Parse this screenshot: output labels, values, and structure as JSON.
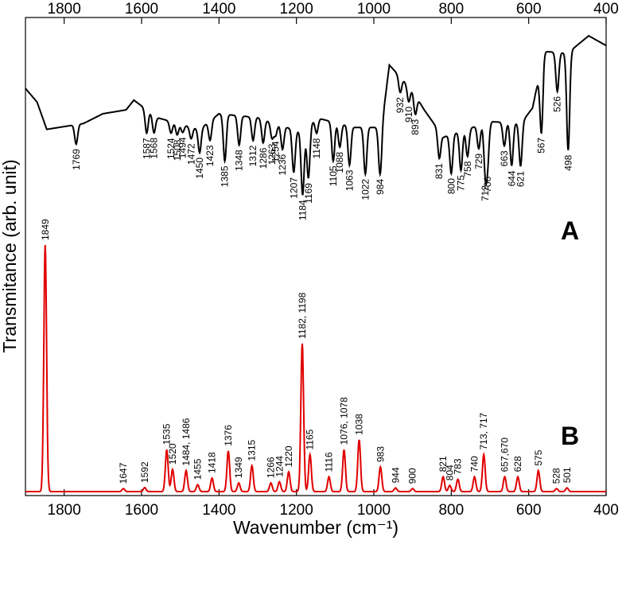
{
  "chart_data": {
    "type": "line",
    "xlabel": "Wavenumber (cm⁻¹)",
    "ylabel": "Transmitance (arb. unit)",
    "xlim": [
      1900,
      400
    ],
    "x_reversed": true,
    "x_ticks_bottom": [
      "1800",
      "1600",
      "1400",
      "1200",
      "1000",
      "800",
      "600",
      "400"
    ],
    "x_ticks_top": [
      "1800",
      "1600",
      "1400",
      "1200",
      "1000",
      "800",
      "600",
      "400"
    ],
    "y_ticks_shown": false,
    "grid": false,
    "series": [
      {
        "name": "A",
        "color": "#000000",
        "relative_transmittance_scale": "0 = lowest trace point, 1 = top of panel",
        "baseline_points": [
          [
            1900,
            0.73
          ],
          [
            1870,
            0.66
          ],
          [
            1845,
            0.52
          ],
          [
            1750,
            0.55
          ],
          [
            1700,
            0.6
          ],
          [
            1640,
            0.62
          ],
          [
            1620,
            0.67
          ],
          [
            1560,
            0.58
          ],
          [
            1450,
            0.52
          ],
          [
            1400,
            0.6
          ],
          [
            1300,
            0.58
          ],
          [
            1180,
            0.5
          ],
          [
            1150,
            0.58
          ],
          [
            1050,
            0.53
          ],
          [
            980,
            0.53
          ],
          [
            960,
            0.85
          ],
          [
            900,
            0.72
          ],
          [
            870,
            0.62
          ],
          [
            820,
            0.48
          ],
          [
            700,
            0.56
          ],
          [
            620,
            0.55
          ],
          [
            590,
            0.63
          ],
          [
            560,
            0.92
          ],
          [
            500,
            0.91
          ],
          [
            445,
            1.0
          ],
          [
            400,
            0.95
          ]
        ],
        "bands": [
          {
            "label": "1769",
            "x": 1769,
            "depth": 0.1
          },
          {
            "label": "1587",
            "x": 1587,
            "depth": 0.12
          },
          {
            "label": "1568",
            "x": 1568,
            "depth": 0.09
          },
          {
            "label": "1524",
            "x": 1524,
            "depth": 0.06
          },
          {
            "label": "1508",
            "x": 1508,
            "depth": 0.06
          },
          {
            "label": "1494",
            "x": 1494,
            "depth": 0.04
          },
          {
            "label": "1472",
            "x": 1472,
            "depth": 0.06
          },
          {
            "label": "1450",
            "x": 1450,
            "depth": 0.12
          },
          {
            "label": "1423",
            "x": 1423,
            "depth": 0.1
          },
          {
            "label": "1385",
            "x": 1385,
            "depth": 0.24
          },
          {
            "label": "1348",
            "x": 1348,
            "depth": 0.15
          },
          {
            "label": "1312",
            "x": 1312,
            "depth": 0.12
          },
          {
            "label": "1286",
            "x": 1286,
            "depth": 0.12
          },
          {
            "label": "1263",
            "x": 1263,
            "depth": 0.08
          },
          {
            "label": "1254",
            "x": 1254,
            "depth": 0.06
          },
          {
            "label": "1236",
            "x": 1236,
            "depth": 0.12
          },
          {
            "label": "1207",
            "x": 1207,
            "depth": 0.22
          },
          {
            "label": "1184",
            "x": 1184,
            "depth": 0.32
          },
          {
            "label": "1169",
            "x": 1169,
            "depth": 0.26
          },
          {
            "label": "1148",
            "x": 1148,
            "depth": 0.08
          },
          {
            "label": "1105",
            "x": 1105,
            "depth": 0.2
          },
          {
            "label": "1088",
            "x": 1088,
            "depth": 0.12
          },
          {
            "label": "1063",
            "x": 1063,
            "depth": 0.2
          },
          {
            "label": "1022",
            "x": 1022,
            "depth": 0.24
          },
          {
            "label": "984",
            "x": 984,
            "depth": 0.24
          },
          {
            "label": "932",
            "x": 932,
            "depth": 0.08
          },
          {
            "label": "910",
            "x": 910,
            "depth": 0.08
          },
          {
            "label": "893",
            "x": 893,
            "depth": 0.1
          },
          {
            "label": "831",
            "x": 831,
            "depth": 0.14
          },
          {
            "label": "800",
            "x": 800,
            "depth": 0.2
          },
          {
            "label": "775",
            "x": 775,
            "depth": 0.2
          },
          {
            "label": "758",
            "x": 758,
            "depth": 0.14
          },
          {
            "label": "729",
            "x": 729,
            "depth": 0.12
          },
          {
            "label": "712",
            "x": 712,
            "depth": 0.24
          },
          {
            "label": "706",
            "x": 706,
            "depth": 0.18
          },
          {
            "label": "663",
            "x": 663,
            "depth": 0.12
          },
          {
            "label": "644",
            "x": 644,
            "depth": 0.22
          },
          {
            "label": "621",
            "x": 621,
            "depth": 0.22
          },
          {
            "label": "567",
            "x": 567,
            "depth": 0.35
          },
          {
            "label": "526",
            "x": 526,
            "depth": 0.2
          },
          {
            "label": "498",
            "x": 498,
            "depth": 0.5
          }
        ],
        "panel_label": "A"
      },
      {
        "name": "B",
        "color": "#e00000",
        "relative_intensity_scale": "0 = baseline, 1 = tallest peak",
        "baseline": 0.0,
        "bands": [
          {
            "label": "1849",
            "x": 1849,
            "height": 1.0
          },
          {
            "label": "1647",
            "x": 1647,
            "height": 0.012
          },
          {
            "label": "1592",
            "x": 1592,
            "height": 0.016
          },
          {
            "label": "1535",
            "x": 1535,
            "height": 0.17
          },
          {
            "label": "1520",
            "x": 1520,
            "height": 0.09
          },
          {
            "label": "1484, 1486",
            "x": 1485,
            "height": 0.085
          },
          {
            "label": "1455",
            "x": 1455,
            "height": 0.028
          },
          {
            "label": "1418",
            "x": 1418,
            "height": 0.055
          },
          {
            "label": "1376",
            "x": 1376,
            "height": 0.165
          },
          {
            "label": "1349",
            "x": 1349,
            "height": 0.035
          },
          {
            "label": "1315",
            "x": 1315,
            "height": 0.105
          },
          {
            "label": "1266",
            "x": 1266,
            "height": 0.035
          },
          {
            "label": "1244",
            "x": 1244,
            "height": 0.04
          },
          {
            "label": "1220",
            "x": 1220,
            "height": 0.08
          },
          {
            "label": "1182, 1198",
            "x": 1185,
            "height": 0.6
          },
          {
            "label": "1165",
            "x": 1165,
            "height": 0.15
          },
          {
            "label": "1116",
            "x": 1116,
            "height": 0.06
          },
          {
            "label": "1076, 1078",
            "x": 1077,
            "height": 0.17
          },
          {
            "label": "1038",
            "x": 1038,
            "height": 0.21
          },
          {
            "label": "983",
            "x": 983,
            "height": 0.1
          },
          {
            "label": "944",
            "x": 944,
            "height": 0.015
          },
          {
            "label": "900",
            "x": 900,
            "height": 0.012
          },
          {
            "label": "821",
            "x": 821,
            "height": 0.06
          },
          {
            "label": "804",
            "x": 804,
            "height": 0.025
          },
          {
            "label": "783",
            "x": 783,
            "height": 0.05
          },
          {
            "label": "740",
            "x": 740,
            "height": 0.06
          },
          {
            "label": "713, 717",
            "x": 716,
            "height": 0.15
          },
          {
            "label": "657,670",
            "x": 662,
            "height": 0.06
          },
          {
            "label": "628",
            "x": 628,
            "height": 0.06
          },
          {
            "label": "575",
            "x": 575,
            "height": 0.085
          },
          {
            "label": "528",
            "x": 528,
            "height": 0.012
          },
          {
            "label": "501",
            "x": 501,
            "height": 0.015
          }
        ],
        "panel_label": "B"
      }
    ]
  }
}
